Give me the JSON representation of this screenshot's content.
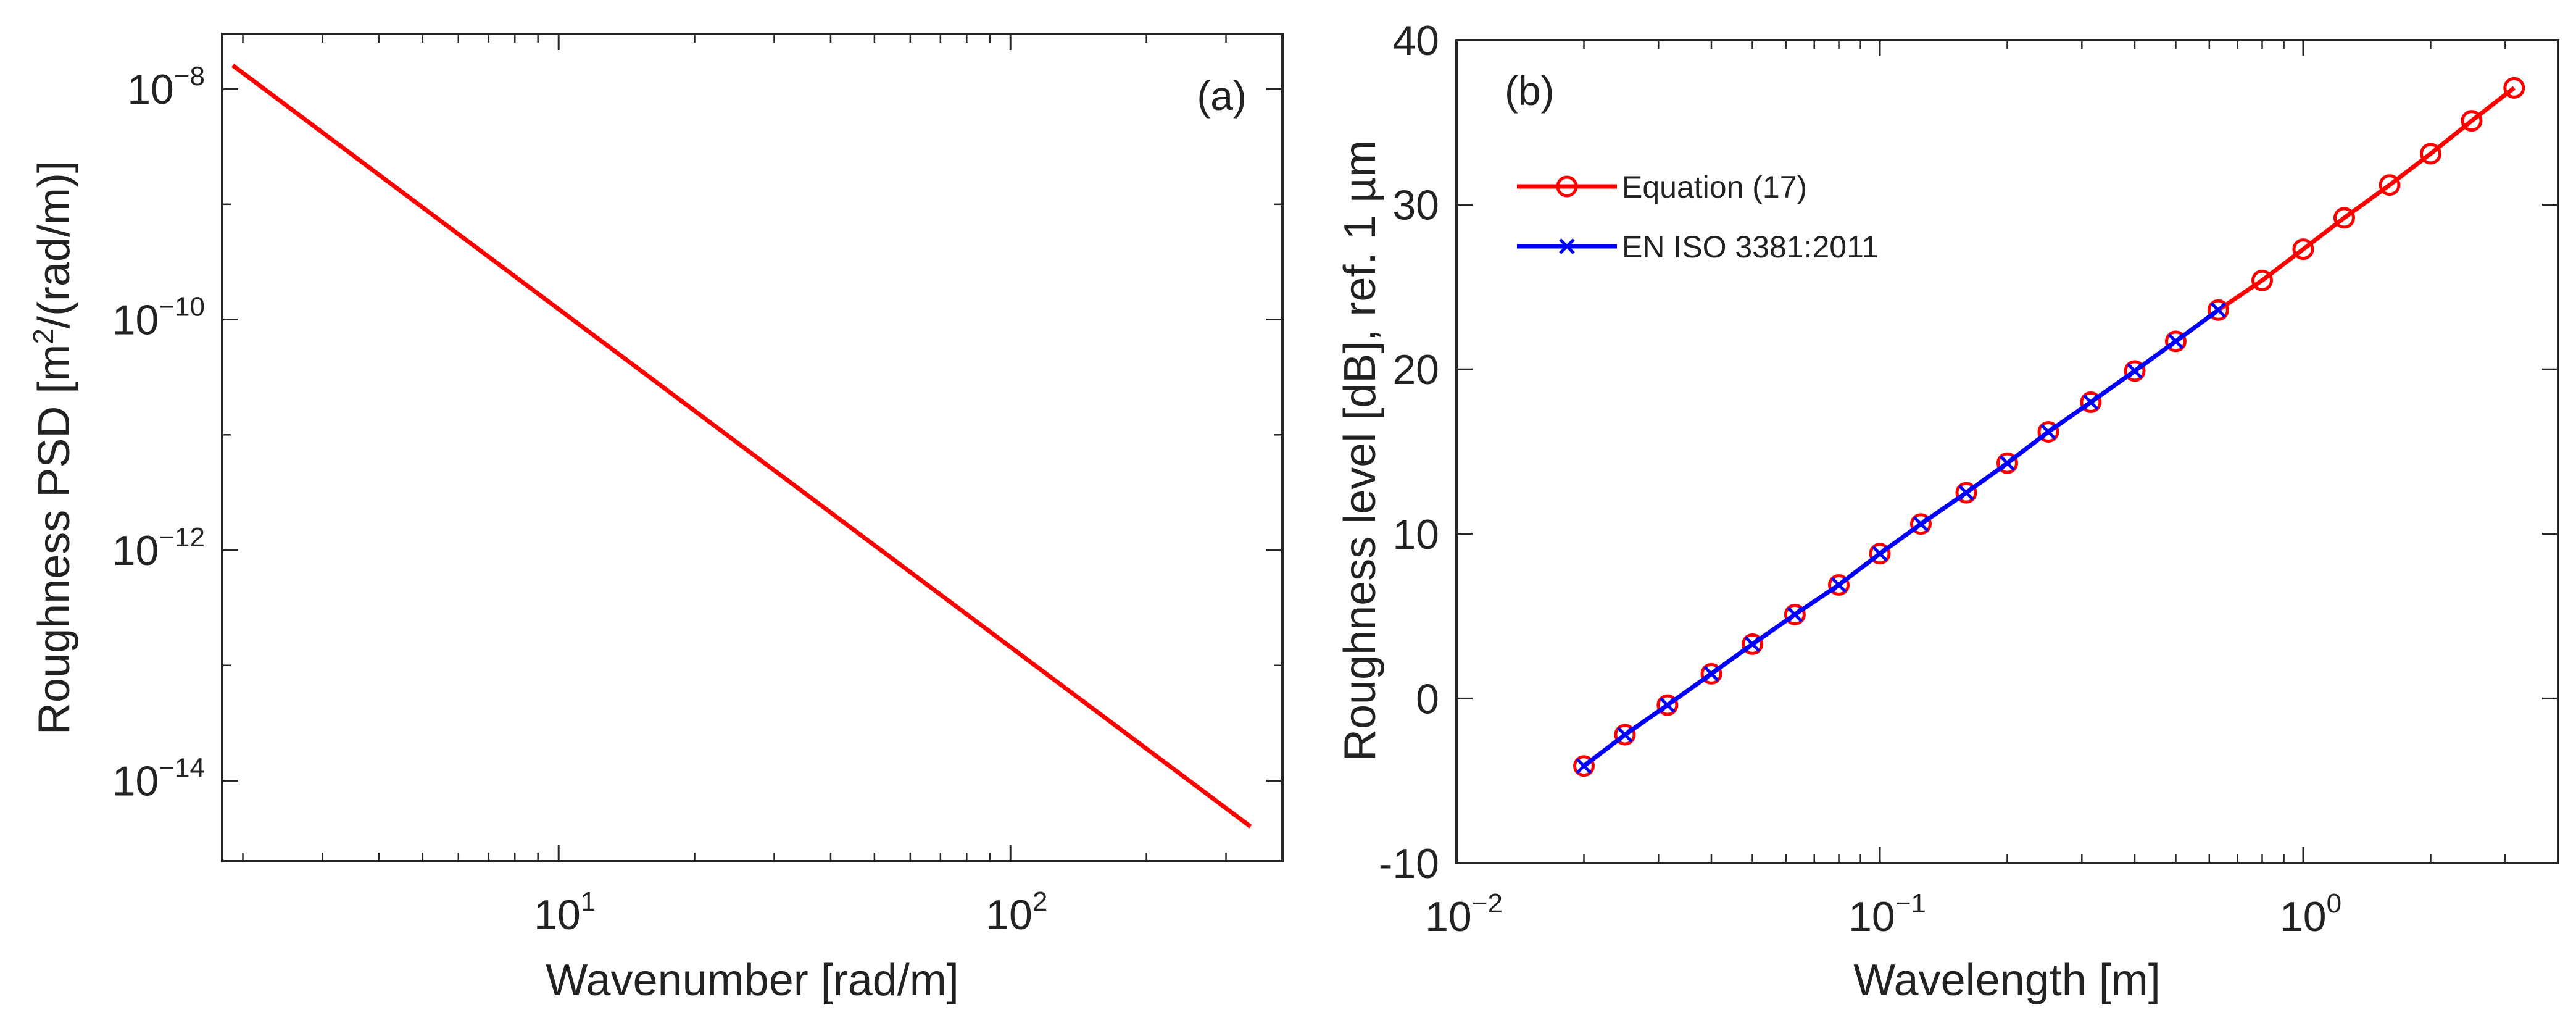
{
  "figure": {
    "colors": {
      "red": "#ff0000",
      "blue": "#0000ff",
      "axis": "#262626"
    }
  },
  "chart_data": [
    {
      "type": "line",
      "panel_label": "(a)",
      "xscale": "log",
      "yscale": "log",
      "xlabel": "Wavenumber [rad/m]",
      "ylabel_main": "Roughness PSD [m",
      "ylabel_sup": "2",
      "ylabel_tail": "/(rad/m)]",
      "xlim": [
        1.8,
        400
      ],
      "ylim": [
        2e-15,
        3e-08
      ],
      "xticks": [
        {
          "value": 10,
          "base": "10",
          "exp": "1"
        },
        {
          "value": 100,
          "base": "10",
          "exp": "2"
        }
      ],
      "yticks": [
        {
          "value": 1e-08,
          "base": "10",
          "exp": "−8"
        },
        {
          "value": 1e-10,
          "base": "10",
          "exp": "−10"
        },
        {
          "value": 1e-12,
          "base": "10",
          "exp": "−12"
        },
        {
          "value": 1e-14,
          "base": "10",
          "exp": "−14"
        }
      ],
      "series": [
        {
          "name": "Roughness PSD",
          "color": "#ff0000",
          "x": [
            1.9,
            340
          ],
          "y": [
            1.6e-08,
            4e-15
          ]
        }
      ]
    },
    {
      "type": "line",
      "panel_label": "(b)",
      "xscale": "log",
      "yscale": "linear",
      "xlabel": "Wavelength [m]",
      "ylabel": "Roughness level [dB], ref. 1 µm",
      "xlim": [
        0.01,
        4
      ],
      "ylim": [
        -10,
        40
      ],
      "xticks": [
        {
          "value": 0.01,
          "base": "10",
          "exp": "−2"
        },
        {
          "value": 0.1,
          "base": "10",
          "exp": "−1"
        },
        {
          "value": 1,
          "base": "10",
          "exp": "0"
        }
      ],
      "yticks": [
        {
          "value": -10,
          "label": "-10"
        },
        {
          "value": 0,
          "label": "0"
        },
        {
          "value": 10,
          "label": "10"
        },
        {
          "value": 20,
          "label": "20"
        },
        {
          "value": 30,
          "label": "30"
        },
        {
          "value": 40,
          "label": "40"
        }
      ],
      "legend_position": "upper-left",
      "series": [
        {
          "name": "Equation (17)",
          "color": "#ff0000",
          "marker": "circle",
          "x": [
            0.02,
            0.025,
            0.0315,
            0.04,
            0.05,
            0.063,
            0.08,
            0.1,
            0.125,
            0.16,
            0.2,
            0.25,
            0.315,
            0.4,
            0.5,
            0.63,
            0.8,
            1.0,
            1.25,
            1.6,
            2.0,
            2.5,
            3.15
          ],
          "y": [
            -4.1,
            -2.2,
            -0.4,
            1.5,
            3.3,
            5.1,
            6.9,
            8.8,
            10.6,
            12.5,
            14.3,
            16.2,
            18.0,
            19.9,
            21.7,
            23.6,
            25.4,
            27.3,
            29.2,
            31.2,
            33.1,
            35.1,
            37.1
          ]
        },
        {
          "name": "EN ISO 3381:2011",
          "color": "#0000ff",
          "marker": "x",
          "x": [
            0.02,
            0.025,
            0.0315,
            0.04,
            0.05,
            0.063,
            0.08,
            0.1,
            0.125,
            0.16,
            0.2,
            0.25,
            0.315,
            0.4,
            0.5,
            0.63
          ],
          "y": [
            -4.1,
            -2.2,
            -0.4,
            1.5,
            3.3,
            5.1,
            6.9,
            8.8,
            10.6,
            12.5,
            14.3,
            16.2,
            18.0,
            19.9,
            21.7,
            23.6
          ]
        }
      ]
    }
  ]
}
